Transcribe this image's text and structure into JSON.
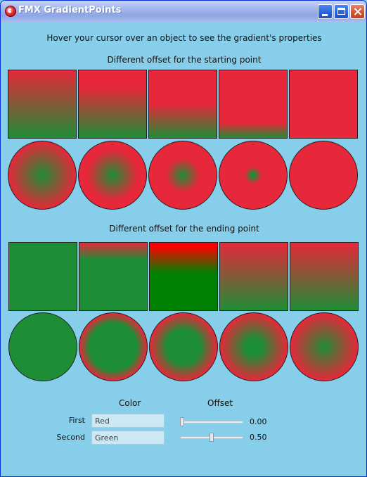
{
  "window": {
    "title": "FMX GradientPoints"
  },
  "instructions": "Hover your cursor over an object to see the gradient's properties",
  "sections": {
    "start_heading": "Different offset for the starting point",
    "end_heading": "Different offset for the ending point"
  },
  "colors": {
    "red": "#e6283a",
    "green": "#1e8e36",
    "window_bg": "#87CEEB"
  },
  "controls": {
    "color_header": "Color",
    "offset_header": "Offset",
    "first": {
      "label": "First",
      "color": "Red",
      "offset": 0.0,
      "offset_text": "0.00"
    },
    "second": {
      "label": "Second",
      "color": "Green",
      "offset": 0.5,
      "offset_text": "0.50"
    }
  }
}
